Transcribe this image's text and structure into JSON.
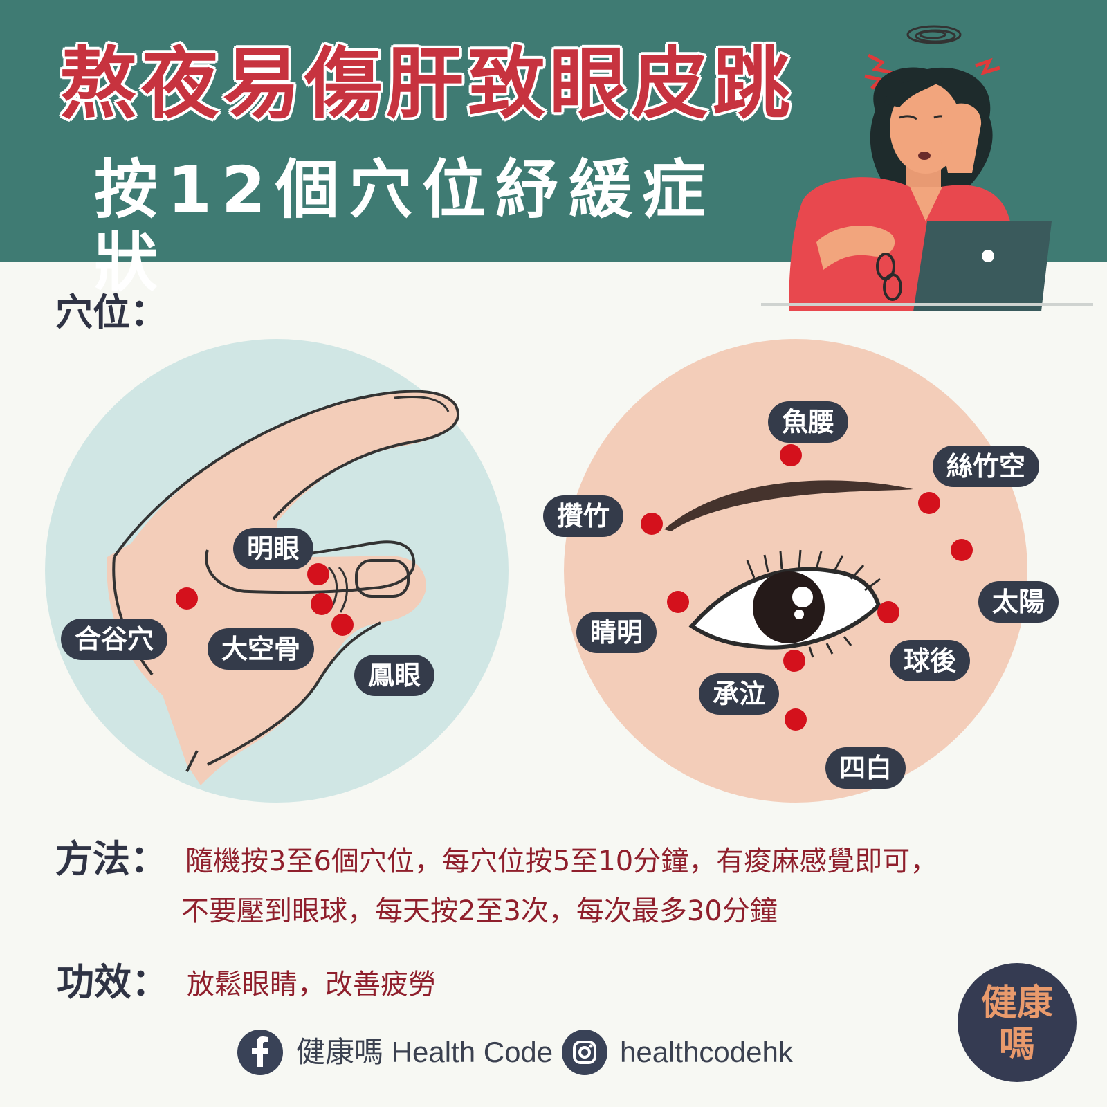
{
  "header": {
    "title_line1": "熬夜易傷肝致眼皮跳",
    "title_line2": "按12個穴位紓緩症狀"
  },
  "sections": {
    "acupoints_label": "穴位：",
    "method_label": "方法：",
    "effect_label": "功效："
  },
  "hand_points": {
    "mingyan": "明眼",
    "hegu": "合谷穴",
    "dakonggu": "大空骨",
    "fengyan": "鳳眼"
  },
  "eye_points": {
    "yuyao": "魚腰",
    "sizhukong": "絲竹空",
    "cuanzhu": "攢竹",
    "taiyang": "太陽",
    "jingming": "睛明",
    "qiuhou": "球後",
    "chengqi": "承泣",
    "sibai": "四白"
  },
  "method": {
    "line1": "隨機按3至6個穴位，每穴位按5至10分鐘，有痠麻感覺即可，",
    "line2": "不要壓到眼球，每天按2至3次，每次最多30分鐘"
  },
  "effect": {
    "text": "放鬆眼睛，改善疲勞"
  },
  "footer": {
    "facebook_icon": "facebook-icon",
    "facebook_name": "健康嗎 Health Code",
    "instagram_icon": "instagram-icon",
    "instagram_handle": "healthcodehk"
  },
  "logo": {
    "line1": "健康",
    "line2": "嗎"
  },
  "colors": {
    "header_bg": "#3f7b73",
    "title_red": "#c7333f",
    "point_red": "#d4111c",
    "pill_bg": "#343b4a",
    "desc_red": "#8f1f2c",
    "hand_circle": "#d0e6e4",
    "eye_circle": "#f3cdb9"
  }
}
